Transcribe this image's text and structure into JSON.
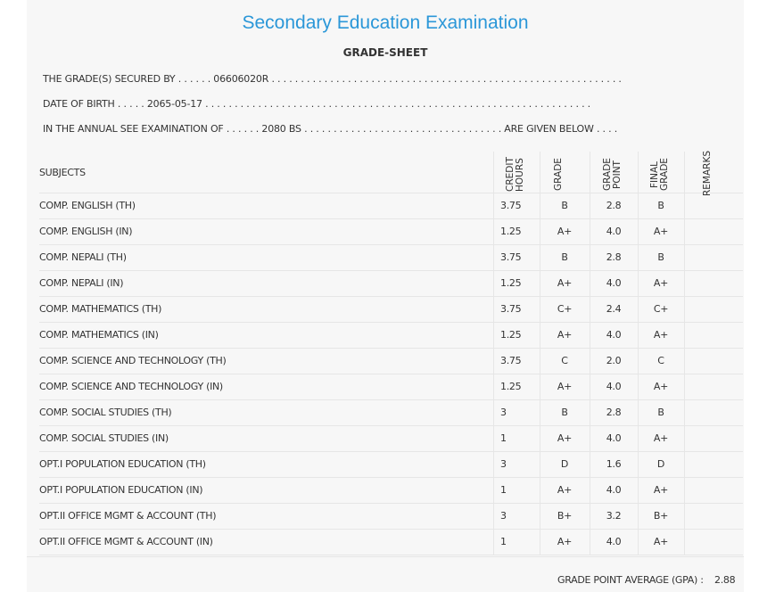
{
  "header": {
    "title": "Secondary Education Examination",
    "subtitle": "GRADE-SHEET"
  },
  "info": [
    "THE GRADE(S) SECURED BY . . . . . . 06606020R . . . . . . . . . . . . . . . . . . . . . . . . . . . . . . . . . . . . . . . . . . . . . . . . . . . . . . . . . . . .",
    "DATE OF BIRTH . . . . . 2065-05-17 . . . . . . . . . . . . . . . . . . . . . . . . . . . . . . . . . . . . . . . . . . . . . . . . . . . . . . . . . . . . . . . . . .",
    "IN THE ANNUAL SEE EXAMINATION OF . . . . . . 2080 BS . . . . . . . . . . . . . . . . . . . . . . . . . . . . . . . . . . ARE GIVEN BELOW . . . ."
  ],
  "table": {
    "headers": [
      "SUBJECTS",
      "CREDIT HOURS",
      "GRADE",
      "GRADE POINT",
      "FINAL GRADE",
      "REMARKS"
    ],
    "rows": [
      [
        "COMP. ENGLISH (TH)",
        "3.75",
        "B",
        "2.8",
        "B"
      ],
      [
        "COMP. ENGLISH (IN)",
        "1.25",
        "A+",
        "4.0",
        "A+"
      ],
      [
        "COMP. NEPALI (TH)",
        "3.75",
        "B",
        "2.8",
        "B"
      ],
      [
        "COMP. NEPALI (IN)",
        "1.25",
        "A+",
        "4.0",
        "A+"
      ],
      [
        "COMP. MATHEMATICS (TH)",
        "3.75",
        "C+",
        "2.4",
        "C+"
      ],
      [
        "COMP. MATHEMATICS (IN)",
        "1.25",
        "A+",
        "4.0",
        "A+"
      ],
      [
        "COMP. SCIENCE AND TECHNOLOGY (TH)",
        "3.75",
        "C",
        "2.0",
        "C"
      ],
      [
        "COMP. SCIENCE AND TECHNOLOGY (IN)",
        "1.25",
        "A+",
        "4.0",
        "A+"
      ],
      [
        "COMP. SOCIAL STUDIES (TH)",
        "3",
        "B",
        "2.8",
        "B"
      ],
      [
        "COMP. SOCIAL STUDIES (IN)",
        "1",
        "A+",
        "4.0",
        "A+"
      ],
      [
        "OPT.I POPULATION EDUCATION (TH)",
        "3",
        "D",
        "1.6",
        "D"
      ],
      [
        "OPT.I POPULATION EDUCATION (IN)",
        "1",
        "A+",
        "4.0",
        "A+"
      ],
      [
        "OPT.II OFFICE MGMT & ACCOUNT (TH)",
        "3",
        "B+",
        "3.2",
        "B+"
      ],
      [
        "OPT.II OFFICE MGMT & ACCOUNT (IN)",
        "1",
        "A+",
        "4.0",
        "A+"
      ]
    ]
  },
  "footer": {
    "label": "GRADE POINT AVERAGE (GPA) :",
    "value": "2.88"
  }
}
